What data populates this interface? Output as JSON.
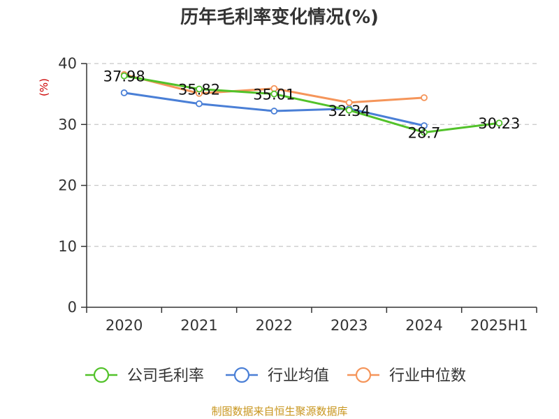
{
  "chart_data": {
    "type": "line",
    "title": "历年毛利率变化情况(%)",
    "ylabel": "(%)",
    "xlabel": "",
    "ylim": [
      0,
      40
    ],
    "yticks": [
      0,
      10,
      20,
      30,
      40
    ],
    "categories": [
      "2020",
      "2021",
      "2022",
      "2023",
      "2024",
      "2025H1"
    ],
    "grid": true,
    "legend_position": "bottom",
    "series": [
      {
        "name": "公司毛利率",
        "color": "#52c22a",
        "values": [
          37.98,
          35.82,
          35.01,
          32.34,
          28.7,
          30.23
        ],
        "labels": [
          "37.98",
          "35.82",
          "35.01",
          "32.34",
          "28.7",
          "30.23"
        ]
      },
      {
        "name": "行业均值",
        "color": "#4a7fd6",
        "values": [
          35.2,
          33.4,
          32.2,
          32.6,
          29.8,
          null
        ],
        "labels": []
      },
      {
        "name": "行业中位数",
        "color": "#f5955a",
        "values": [
          38.2,
          35.1,
          35.9,
          33.6,
          34.4,
          null
        ],
        "labels": []
      }
    ]
  },
  "source": "制图数据来自恒生聚源数据库"
}
